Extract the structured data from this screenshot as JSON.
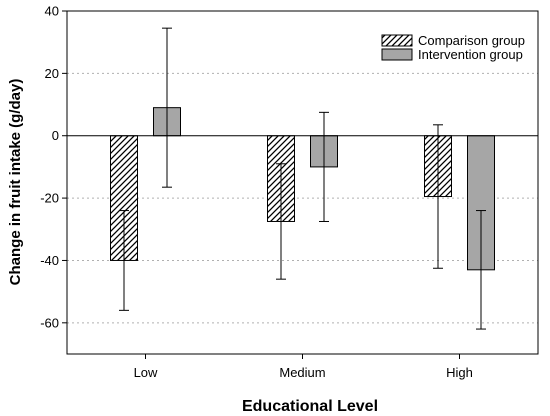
{
  "chart_data": {
    "type": "bar",
    "categories": [
      "Low",
      "Medium",
      "High"
    ],
    "series": [
      {
        "name": "Comparison group",
        "values": [
          -40,
          -27.5,
          -19.5
        ],
        "error": [
          16,
          18.5,
          23
        ],
        "fill": "hatched"
      },
      {
        "name": "Intervention group",
        "values": [
          9,
          -10,
          -43
        ],
        "error": [
          25.5,
          17.5,
          19
        ],
        "fill": "#a6a6a6"
      }
    ],
    "xlabel": "Educational Level",
    "ylabel": "Change in fruit intake (g/day)",
    "ylim": [
      -70,
      40
    ],
    "yticks": [
      40,
      20,
      0,
      -20,
      -40,
      -60
    ],
    "grid": "horizontal dotted",
    "zero_line": true,
    "legend_position": "top-right"
  }
}
